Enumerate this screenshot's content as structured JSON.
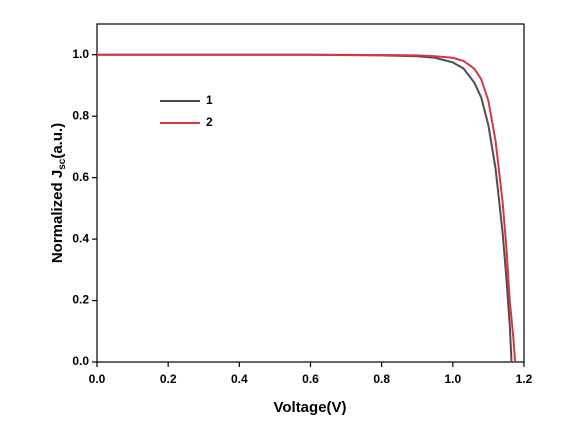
{
  "chart_data": {
    "type": "line",
    "xlabel": "Voltage(V)",
    "ylabel": "Normalized J",
    "ylabel_sub": "sc",
    "ylabel_suffix": "(a.u.)",
    "xlim": [
      0,
      1.2
    ],
    "ylim": [
      0,
      1.1
    ],
    "xticks": [
      {
        "value": 0,
        "label": "0.0"
      },
      {
        "value": 0.2,
        "label": "0.2"
      },
      {
        "value": 0.4,
        "label": "0.4"
      },
      {
        "value": 0.6,
        "label": "0.6"
      },
      {
        "value": 0.8,
        "label": "0.8"
      },
      {
        "value": 1.0,
        "label": "1.0"
      },
      {
        "value": 1.2,
        "label": "1.2"
      }
    ],
    "yticks": [
      {
        "value": 0,
        "label": "0.0"
      },
      {
        "value": 0.2,
        "label": "0.2"
      },
      {
        "value": 0.4,
        "label": "0.4"
      },
      {
        "value": 0.6,
        "label": "0.6"
      },
      {
        "value": 0.8,
        "label": "0.8"
      },
      {
        "value": 1.0,
        "label": "1.0"
      }
    ],
    "legend": "upper left",
    "series": [
      {
        "name": "1",
        "color": "#4d4d4d",
        "x": [
          0,
          0.2,
          0.4,
          0.6,
          0.8,
          0.9,
          0.95,
          1.0,
          1.03,
          1.06,
          1.08,
          1.1,
          1.12,
          1.14,
          1.15,
          1.16,
          1.165
        ],
        "values": [
          1,
          1,
          1,
          1,
          0.998,
          0.995,
          0.99,
          0.975,
          0.955,
          0.91,
          0.86,
          0.77,
          0.63,
          0.42,
          0.28,
          0.12,
          0
        ]
      },
      {
        "name": "2",
        "color": "#d9363e",
        "x": [
          0,
          0.2,
          0.4,
          0.6,
          0.8,
          0.9,
          0.95,
          1.0,
          1.03,
          1.06,
          1.08,
          1.1,
          1.12,
          1.14,
          1.15,
          1.16,
          1.17,
          1.175
        ],
        "values": [
          1,
          1,
          1,
          1,
          0.999,
          0.998,
          0.995,
          0.99,
          0.98,
          0.955,
          0.92,
          0.85,
          0.72,
          0.52,
          0.38,
          0.2,
          0.08,
          0
        ]
      }
    ]
  }
}
